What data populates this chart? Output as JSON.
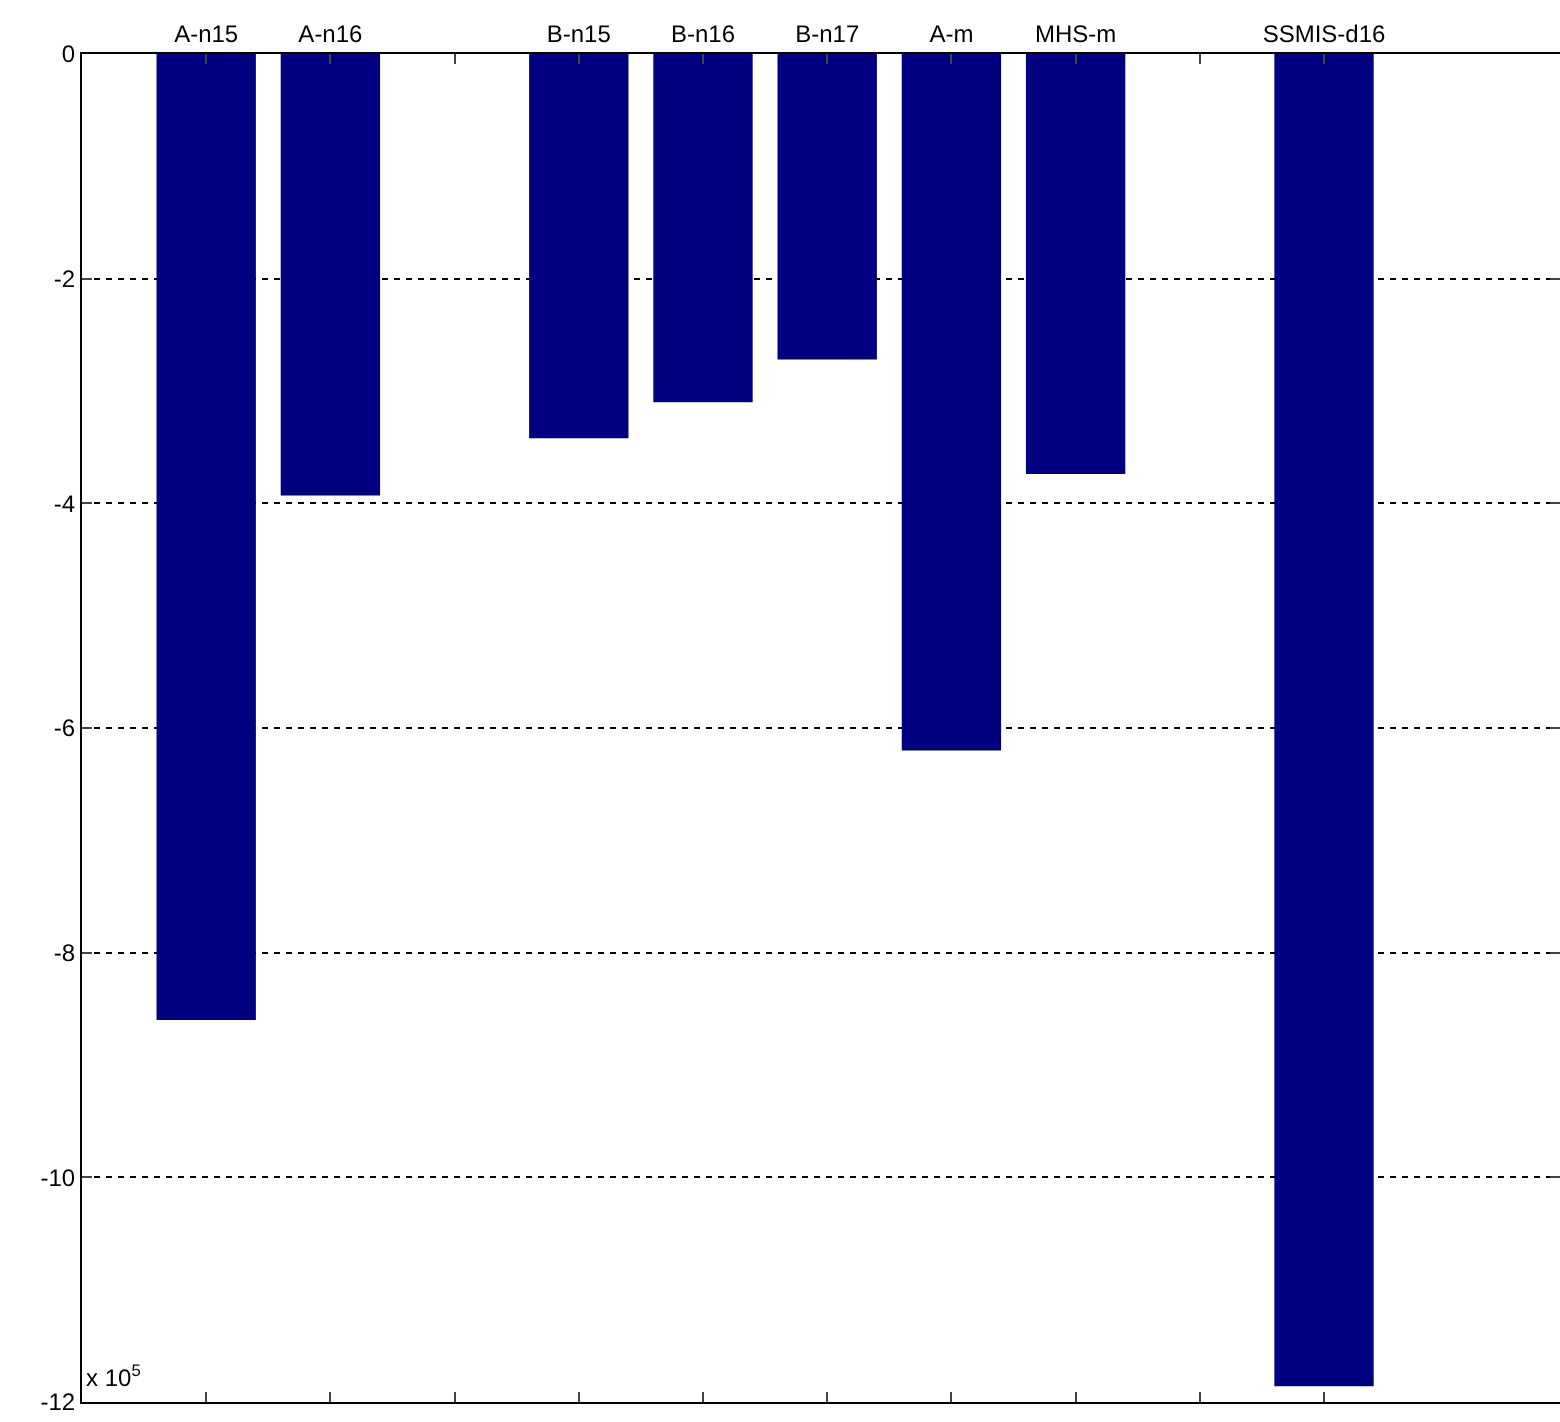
{
  "chart_data": {
    "type": "bar",
    "categories": [
      "A-n15",
      "A-n16",
      null,
      "B-n15",
      "B-n16",
      "B-n17",
      "A-m",
      "MHS-m",
      null,
      "SSMIS-d16"
    ],
    "values": [
      -8.6,
      -3.93,
      null,
      -3.42,
      -3.1,
      -2.72,
      -6.2,
      -3.74,
      null,
      -11.86
    ],
    "color": "#000080",
    "ylim": [
      -12,
      0
    ],
    "yticks": [
      -12,
      -10,
      -8,
      -6,
      -4,
      -2,
      0
    ],
    "grid": "y",
    "legend": false,
    "annotations": [
      "x 10$^{5}$"
    ]
  }
}
